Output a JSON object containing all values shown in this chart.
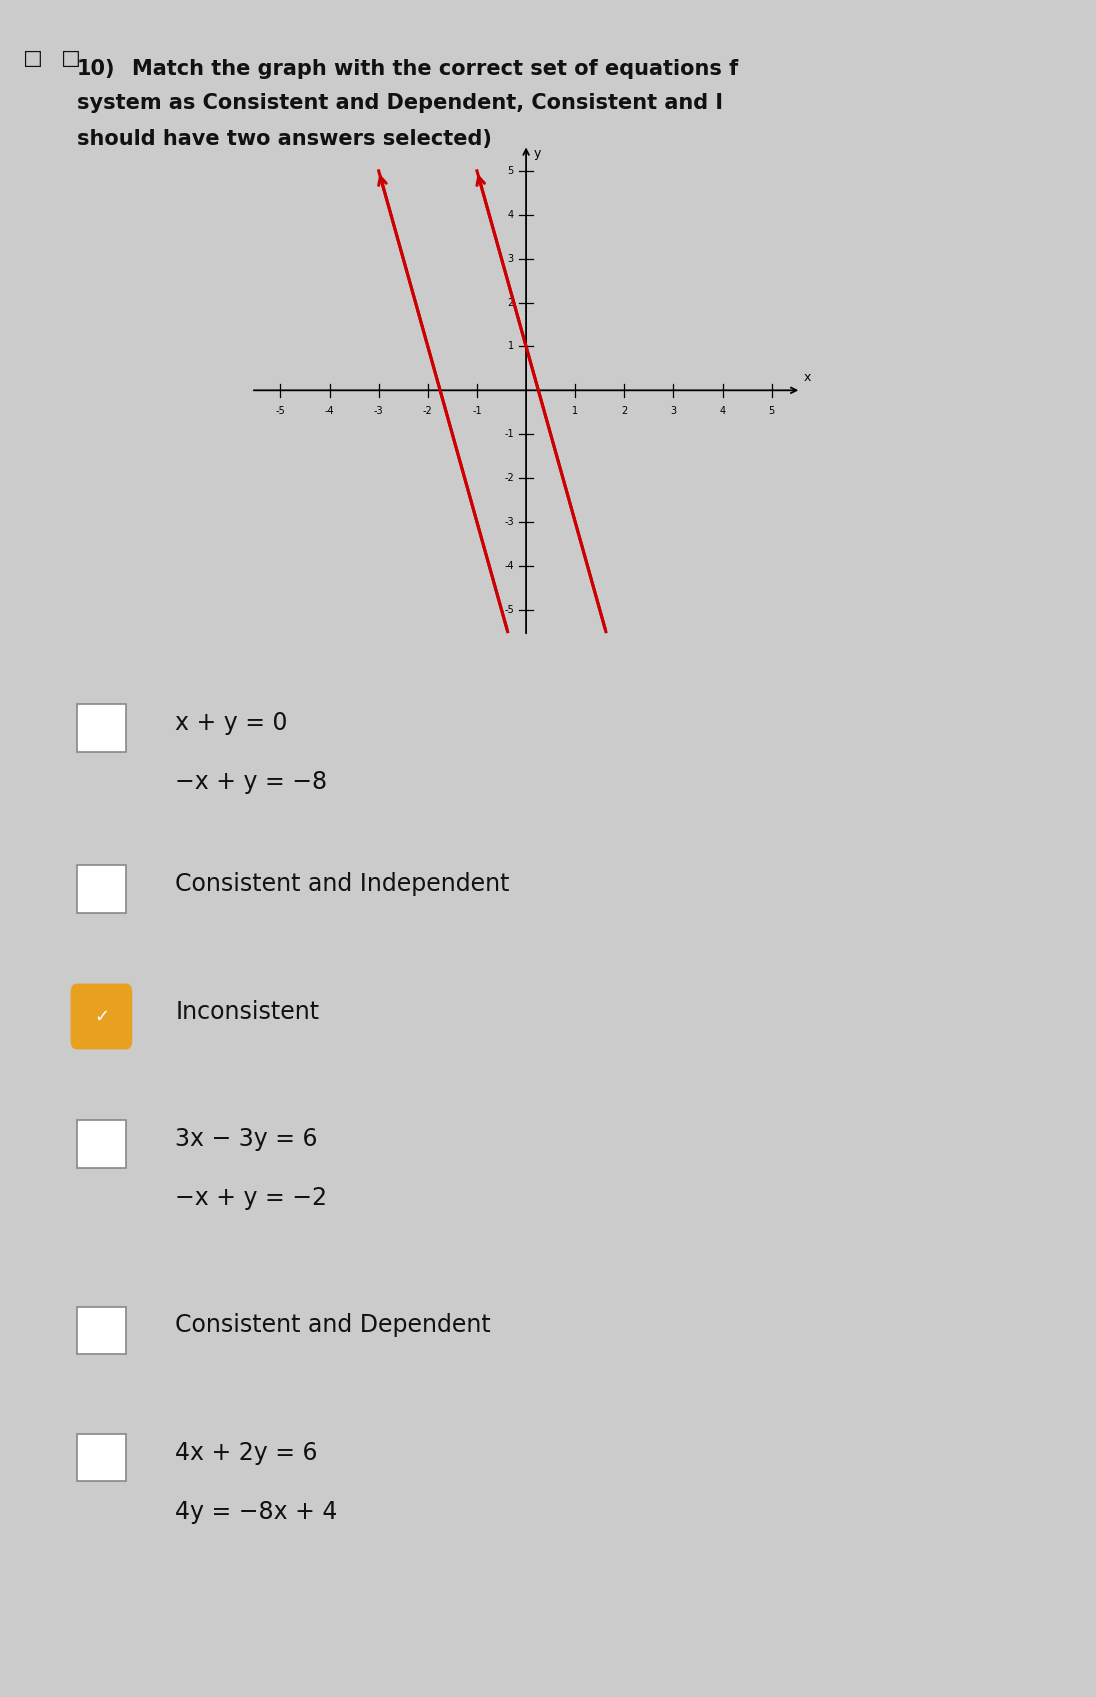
{
  "title_number": "10)",
  "title_text1": "Match the graph with the correct set of equations f",
  "title_text2": "system as Consistent and Dependent, Consistent and I",
  "title_text3": "should have two answers selected)",
  "background_color": "#cbcbcb",
  "line_color": "#cc0000",
  "line1_slope": -4,
  "line1_yintercept": 1,
  "line2_slope": -4,
  "line2_yintercept": -7,
  "axis_lim": 5.5,
  "check_bg_color": "#e8a020",
  "check_fg_color": "#ffffff",
  "box_color": "#ffffff",
  "box_edge_color": "#888888",
  "text_color": "#111111",
  "option1_line1": "x + y = 0",
  "option1_line2": "−x + y = −8",
  "option2": "Consistent and Independent",
  "option3": "Inconsistent",
  "option4_line1": "3x − 3y = 6",
  "option4_line2": "−x + y = −2",
  "option5": "Consistent and Dependent",
  "option6_line1": "4x + 2y = 6",
  "option6_line2": "4y = −8x + 4"
}
